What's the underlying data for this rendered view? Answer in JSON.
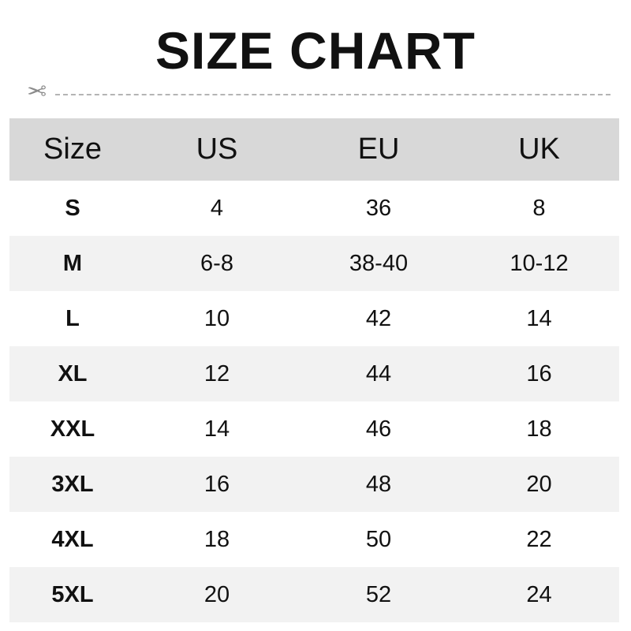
{
  "title": "SIZE CHART",
  "icons": {
    "cut": "scissors-icon"
  },
  "colors": {
    "header_bg": "#d8d8d8",
    "alt_row_bg": "#f2f2f2",
    "dash": "#b4b4b4"
  },
  "table": {
    "headers": [
      "Size",
      "US",
      "EU",
      "UK"
    ],
    "rows": [
      [
        "S",
        "4",
        "36",
        "8"
      ],
      [
        "M",
        "6-8",
        "38-40",
        "10-12"
      ],
      [
        "L",
        "10",
        "42",
        "14"
      ],
      [
        "XL",
        "12",
        "44",
        "16"
      ],
      [
        "XXL",
        "14",
        "46",
        "18"
      ],
      [
        "3XL",
        "16",
        "48",
        "20"
      ],
      [
        "4XL",
        "18",
        "50",
        "22"
      ],
      [
        "5XL",
        "20",
        "52",
        "24"
      ]
    ]
  }
}
